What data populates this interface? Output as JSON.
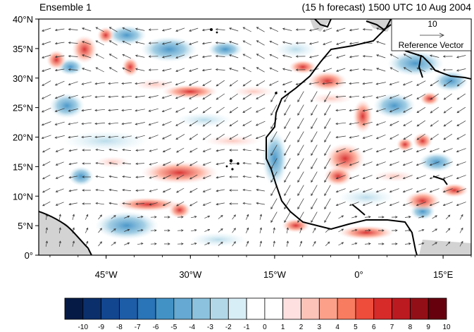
{
  "title_left": "Ensemble 1",
  "title_right": "(15 h forecast) 1500 UTC 10 Aug 2004",
  "y_ticks": [
    {
      "label": "40°N",
      "lat": 40
    },
    {
      "label": "35°N",
      "lat": 35
    },
    {
      "label": "30°N",
      "lat": 30
    },
    {
      "label": "25°N",
      "lat": 25
    },
    {
      "label": "20°N",
      "lat": 20
    },
    {
      "label": "15°N",
      "lat": 15
    },
    {
      "label": "10°N",
      "lat": 10
    },
    {
      "label": "5°N",
      "lat": 5
    },
    {
      "label": "0°",
      "lat": 0
    }
  ],
  "x_ticks": [
    {
      "label": "45°W",
      "lon": -45
    },
    {
      "label": "30°W",
      "lon": -30
    },
    {
      "label": "15°W",
      "lon": -15
    },
    {
      "label": "0°",
      "lon": 0
    },
    {
      "label": "15°E",
      "lon": 15
    }
  ],
  "map_extent": {
    "lon_min": -57,
    "lon_max": 20,
    "lat_min": 0,
    "lat_max": 40
  },
  "reference_vector": {
    "value": "10",
    "label": "Reference Vector"
  },
  "colorbar": {
    "labels": [
      "-10",
      "-9",
      "-8",
      "-7",
      "-6",
      "-5",
      "-4",
      "-3",
      "-2",
      "-1",
      "0",
      "1",
      "2",
      "3",
      "4",
      "5",
      "6",
      "7",
      "8",
      "9",
      "10"
    ],
    "colors": [
      "#061a46",
      "#0a2f6b",
      "#12468f",
      "#1d5ca7",
      "#2a74b8",
      "#4292c6",
      "#66a9d2",
      "#8cc2dd",
      "#b2d8e8",
      "#d8eef6",
      "#ffffff",
      "#ffffff",
      "#fde0df",
      "#fcc3b8",
      "#fca08a",
      "#f87c5f",
      "#ef4d3c",
      "#d72b2a",
      "#bb1a20",
      "#930f17",
      "#67000d"
    ]
  },
  "colors": {
    "land": "#d3d3d3",
    "coast": "#000000",
    "vector": "#333333"
  }
}
